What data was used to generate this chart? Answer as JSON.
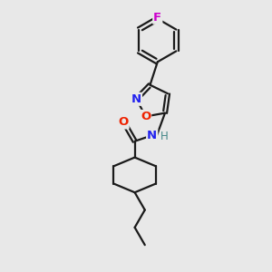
{
  "bg_color": "#e8e8e8",
  "bond_color": "#1a1a1a",
  "bond_width": 1.6,
  "atom_labels": {
    "F": {
      "color": "#cc00cc",
      "fontsize": 9.5
    },
    "O_ring": {
      "color": "#ee2200",
      "fontsize": 9.5
    },
    "N_ring": {
      "color": "#2222ee",
      "fontsize": 9.5
    },
    "N_amide": {
      "color": "#2222ee",
      "fontsize": 9.5
    },
    "H_amide": {
      "color": "#448888",
      "fontsize": 8.5
    },
    "O_carbonyl": {
      "color": "#ee2200",
      "fontsize": 9.5
    }
  },
  "xlim": [
    0,
    10
  ],
  "ylim": [
    0,
    10
  ]
}
